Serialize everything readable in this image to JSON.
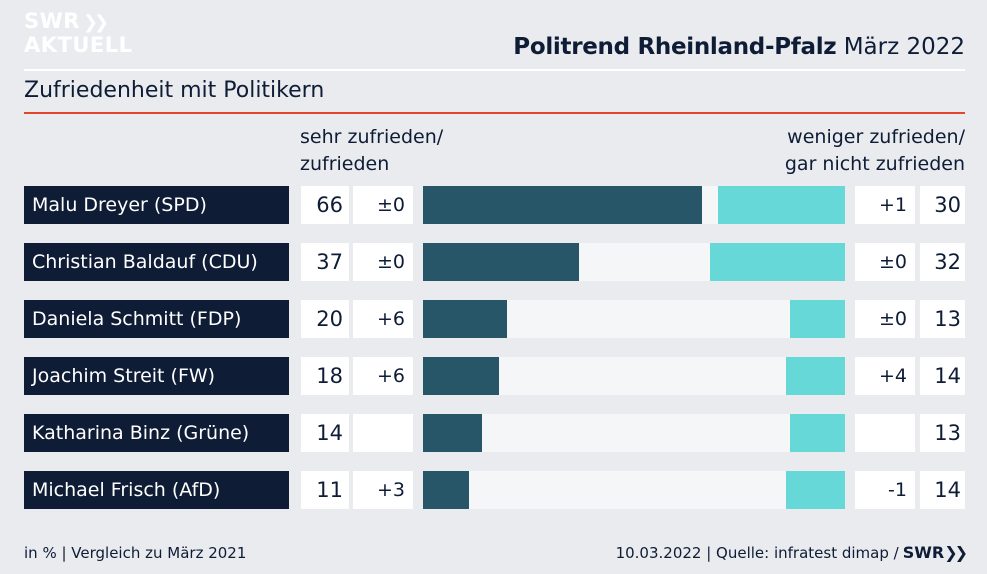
{
  "logo": {
    "line1": "SWR",
    "line2": "AKTUELL"
  },
  "header": {
    "title_strong": "Politrend Rheinland-Pfalz",
    "title_rest": "März 2022"
  },
  "subtitle": "Zufriedenheit mit Politikern",
  "columns": {
    "left_line1": "sehr zufrieden/",
    "left_line2": "zufrieden",
    "right_line1": "weniger zufrieden/",
    "right_line2": "gar nicht zufrieden"
  },
  "chart_data": {
    "type": "bar",
    "title": "Zufriedenheit mit Politikern",
    "unit": "in %",
    "categories": [
      "Malu Dreyer (SPD)",
      "Christian Baldauf (CDU)",
      "Daniela Schmitt (FDP)",
      "Joachim Streit (FW)",
      "Katharina Binz (Grüne)",
      "Michael Frisch (AfD)"
    ],
    "series": [
      {
        "name": "sehr zufrieden/ zufrieden",
        "values": [
          66,
          37,
          20,
          18,
          14,
          11
        ],
        "changes": [
          "±0",
          "±0",
          "+6",
          "+6",
          "",
          "+3"
        ],
        "color": "#285669"
      },
      {
        "name": "weniger zufrieden/ gar nicht zufrieden",
        "values": [
          30,
          32,
          13,
          14,
          13,
          14
        ],
        "changes": [
          "+1",
          "±0",
          "±0",
          "+4",
          "",
          "-1"
        ],
        "color": "#66d8d8"
      }
    ],
    "xlim": [
      0,
      100
    ]
  },
  "footer": {
    "left": "in % | Vergleich zu März 2021",
    "right": "10.03.2022 | Quelle: infratest dimap /",
    "logo": "SWR"
  },
  "colors": {
    "background": "#e9ebee",
    "navy": "#0e1c36",
    "bar_positive": "#285669",
    "bar_negative": "#66d8d8",
    "accent_rule": "#e2472d"
  }
}
